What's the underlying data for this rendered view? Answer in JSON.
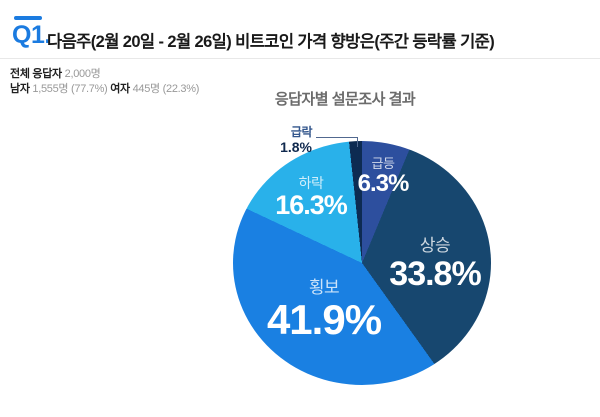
{
  "header": {
    "question_number": "Q1.",
    "title": "다음주(2월 20일 - 2월 26일)  비트코인 가격 향방은(주간 등락률 기준)"
  },
  "respondents": {
    "total_label": "전체 응답자",
    "total_value": "2,000명",
    "male_label": "남자",
    "male_value": "1,555명 (77.7%)",
    "female_label": "여자",
    "female_value": "445명 (22.3%)"
  },
  "chart": {
    "title": "응답자별 설문조사 결과"
  },
  "chart_data": {
    "type": "pie",
    "title": "응답자별 설문조사 결과",
    "categories": [
      "급등",
      "상승",
      "횡보",
      "하락",
      "급락"
    ],
    "values": [
      6.3,
      33.8,
      41.9,
      16.3,
      1.8
    ],
    "display_values": [
      "6.3%",
      "33.8%",
      "41.9%",
      "16.3%",
      "1.8%"
    ],
    "unit": "%",
    "colors": [
      "#2d4f9e",
      "#17476f",
      "#1a80e2",
      "#29b1ea",
      "#0d2b52"
    ],
    "start_angle_deg": 0,
    "direction": "clockwise",
    "legend": "none",
    "labels_on_slices": true,
    "callout_slices": [
      "급락"
    ]
  },
  "theme": {
    "accent_blue": "#1b7be0",
    "title_text": "#191919",
    "muted_text": "#999999",
    "chart_title_text": "#6b6b6b",
    "callout_text": "#10294e",
    "leader_line": "#51688f",
    "background": "#ffffff"
  }
}
